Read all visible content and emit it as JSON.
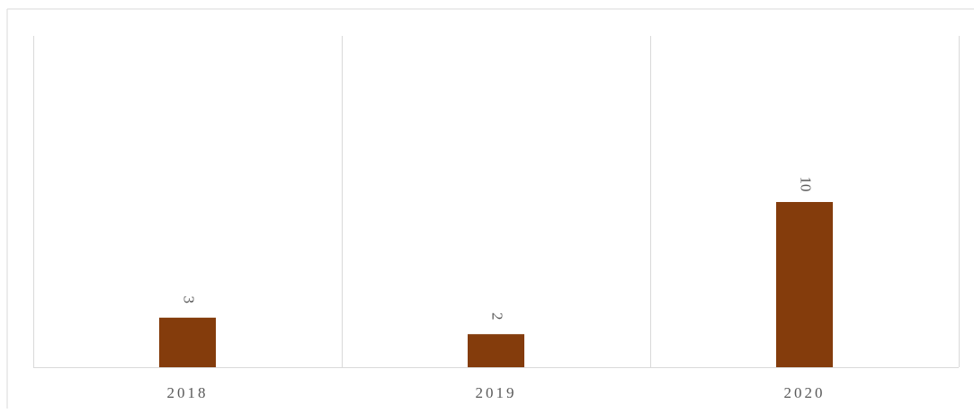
{
  "chart_data": {
    "type": "bar",
    "title": "",
    "xlabel": "",
    "ylabel": "",
    "categories": [
      "2018",
      "2019",
      "2020"
    ],
    "values": [
      3,
      2,
      10
    ],
    "data_labels": [
      "3",
      "2",
      "10"
    ],
    "ylim": [
      0,
      20
    ],
    "grid": "vertical separators between categories",
    "legend": "none",
    "colors": {
      "bar": "#843C0C",
      "axis": "#D9D9D9",
      "label": "#595959",
      "border": "#D9D9D9"
    }
  }
}
